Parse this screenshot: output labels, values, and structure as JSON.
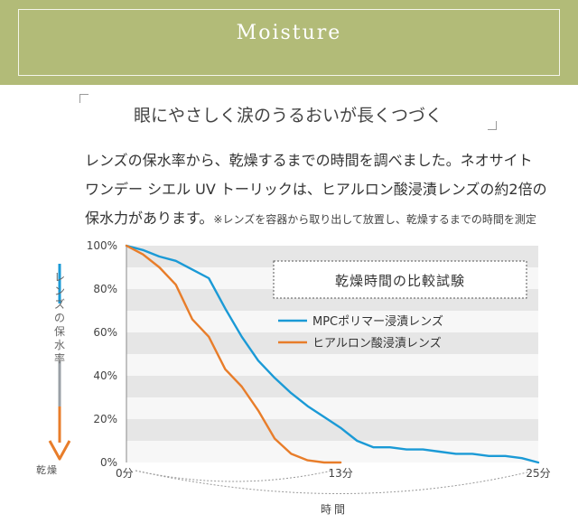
{
  "banner": {
    "title": "Moisture"
  },
  "headline": "眼にやさしく涙のうるおいが長くつづく",
  "body": {
    "line1": "レンズの保水率から、乾燥するまでの時間を調べました。ネオサイト",
    "line2": "ワンデー シエル UV トーリックは、ヒアルロン酸浸漬レンズの約2倍の",
    "line3": "保水力があります。",
    "note": "※レンズを容器から取り出して放置し、乾燥するまでの時間を測定"
  },
  "left_axis": {
    "label": "レンズの保水率",
    "bottom_label": "乾燥"
  },
  "chart_data": {
    "type": "line",
    "title": "乾燥時間の比較試験",
    "xlabel": "時間",
    "ylabel": "レンズの保水率",
    "x_ticks": [
      "0分",
      "13分",
      "25分"
    ],
    "y_ticks": [
      "0%",
      "20%",
      "40%",
      "60%",
      "80%",
      "100%"
    ],
    "xlim": [
      0,
      25
    ],
    "ylim": [
      0,
      100
    ],
    "grid": "horizontal bands",
    "legend_position": "upper-right",
    "series": [
      {
        "name": "MPCポリマー浸漬レンズ",
        "color": "#1b9ad6",
        "x": [
          0,
          1,
          2,
          3,
          4,
          5,
          6,
          7,
          8,
          9,
          10,
          11,
          12,
          13,
          14,
          15,
          16,
          17,
          18,
          19,
          20,
          21,
          22,
          23,
          24,
          25
        ],
        "y": [
          100,
          98,
          95,
          93,
          89,
          85,
          71,
          58,
          47,
          39,
          32,
          26,
          21,
          16,
          10,
          7,
          7,
          6,
          6,
          5,
          4,
          4,
          3,
          3,
          2,
          0
        ]
      },
      {
        "name": "ヒアルロン酸浸漬レンズ",
        "color": "#e87d2a",
        "x": [
          0,
          1,
          2,
          3,
          4,
          5,
          6,
          7,
          8,
          9,
          10,
          11,
          12,
          13
        ],
        "y": [
          100,
          96,
          90,
          82,
          66,
          58,
          43,
          35,
          24,
          11,
          4,
          1,
          0,
          0
        ]
      }
    ]
  }
}
